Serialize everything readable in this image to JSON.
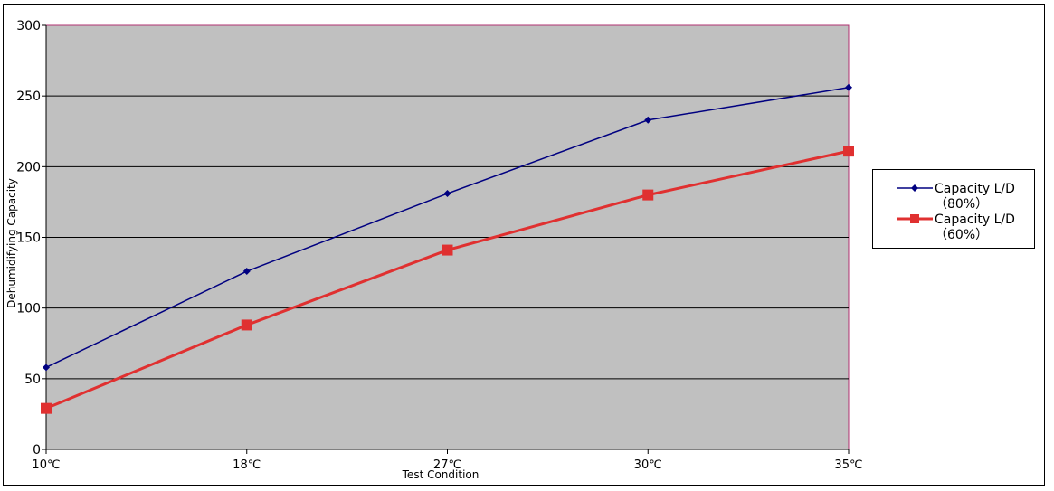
{
  "chart_data": {
    "type": "line",
    "title": "",
    "xlabel": "Test Condition",
    "ylabel": "Dehumidifying Capacity",
    "categories": [
      "10℃",
      "18℃",
      "27℃",
      "30℃",
      "35℃"
    ],
    "ylim": [
      0,
      300
    ],
    "yticks": [
      "0",
      "50",
      "100",
      "150",
      "200",
      "250",
      "300"
    ],
    "grid": true,
    "legend_position": "right",
    "plot_background": "#c0c0c0",
    "series": [
      {
        "name": "Capacity L/D（80%）",
        "values": [
          58,
          126,
          181,
          233,
          256
        ],
        "color": "#000080",
        "marker": "diamond"
      },
      {
        "name": "Capacity L/D（60%）",
        "values": [
          29,
          88,
          141,
          180,
          211
        ],
        "color": "#e03030",
        "marker": "square"
      }
    ]
  }
}
